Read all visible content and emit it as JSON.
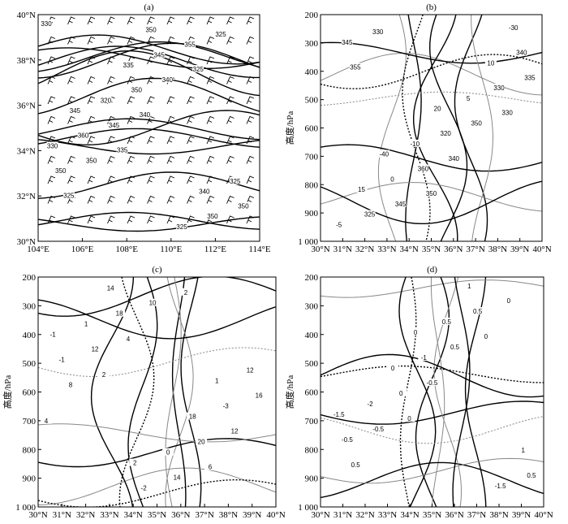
{
  "panels": [
    {
      "label": "(a)",
      "xticks": [
        "104°E",
        "106°E",
        "108°E",
        "110°E",
        "112°E",
        "114°E"
      ],
      "yticks": [
        "40°N",
        "38°N",
        "36°N",
        "34°N",
        "32°N",
        "30°N"
      ],
      "contour_labels": [
        "330",
        "335",
        "325",
        "325",
        "340",
        "325",
        "350",
        "340",
        "350",
        "345",
        "355",
        "350",
        "350",
        "350",
        "360",
        "345",
        "325",
        "320",
        "325",
        "330",
        "335",
        "340",
        "345",
        "350"
      ]
    },
    {
      "label": "(b)",
      "ylabel": "高度/hPa",
      "xticks": [
        "30°N",
        "31°N",
        "32°N",
        "33°N",
        "34°N",
        "35°N",
        "36°N",
        "37°N",
        "38°N",
        "39°N",
        "40°N"
      ],
      "yticks": [
        "200",
        "300",
        "400",
        "500",
        "600",
        "700",
        "800",
        "900",
        "1 000"
      ],
      "contour_labels": [
        "355",
        "350",
        "330",
        "330",
        "340",
        "335",
        "345",
        "350",
        "345",
        "360",
        "330",
        "325",
        "320",
        "340",
        "0",
        "5",
        "-5",
        "-10",
        "10",
        "15",
        "20",
        "-30",
        "-40"
      ]
    },
    {
      "label": "(c)",
      "ylabel": "高度/hPa",
      "xticks": [
        "30°N",
        "31°N",
        "32°N",
        "33°N",
        "34°N",
        "35°N",
        "36°N",
        "37°N",
        "38°N",
        "39°N",
        "40°N"
      ],
      "yticks": [
        "200",
        "300",
        "400",
        "500",
        "600",
        "700",
        "800",
        "900",
        "1 000"
      ],
      "contour_labels": [
        "2",
        "2",
        "4",
        "4",
        "6",
        "8",
        "10",
        "12",
        "12",
        "14",
        "16",
        "18",
        "20",
        "-1",
        "-2",
        "-3",
        "1",
        "0",
        "12",
        "14",
        "18",
        "-1",
        "2",
        "1"
      ]
    },
    {
      "label": "(d)",
      "ylabel": "高度/hPa",
      "xticks": [
        "30°N",
        "31°N",
        "32°N",
        "33°N",
        "34°N",
        "35°N",
        "36°N",
        "37°N",
        "38°N",
        "39°N",
        "40°N"
      ],
      "yticks": [
        "200",
        "300",
        "400",
        "500",
        "600",
        "700",
        "800",
        "900",
        "1 000"
      ],
      "contour_labels": [
        "0",
        "0",
        "0.5",
        "-0.5",
        "0",
        "-0.5",
        "0.5",
        "0.5",
        "0",
        "0.5",
        "-0.5",
        "-1",
        "-1.5",
        "-2",
        "0.5",
        "1",
        "0",
        "1",
        "-1.5",
        "0"
      ]
    }
  ]
}
